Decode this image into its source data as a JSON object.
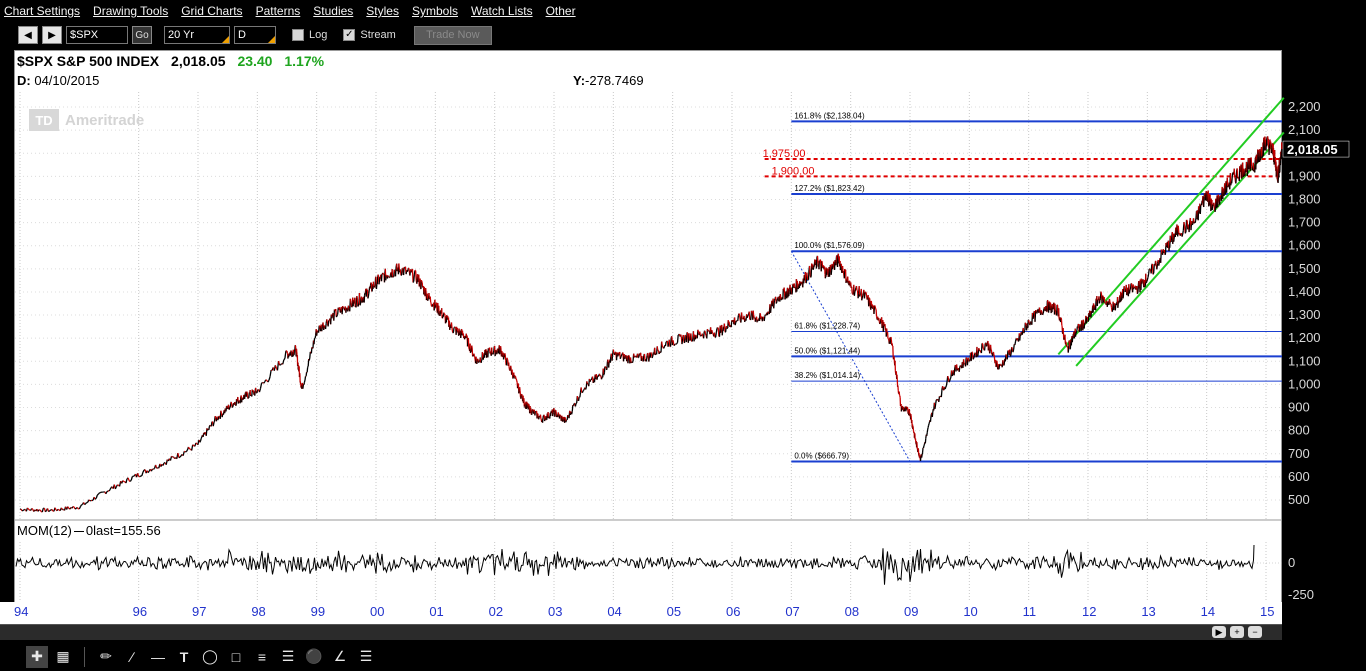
{
  "menu": [
    "Chart Settings",
    "Drawing Tools",
    "Grid Charts",
    "Patterns",
    "Studies",
    "Styles",
    "Symbols",
    "Watch Lists",
    "Other"
  ],
  "toolbar": {
    "symbol": "$SPX",
    "go_label": "Go",
    "period": "20 Yr",
    "interval": "D",
    "log_label": "Log",
    "log_checked": false,
    "stream_label": "Stream",
    "stream_checked": true,
    "trade_label": "Trade Now"
  },
  "header": {
    "symbol_name": "$SPX S&P 500 INDEX",
    "last": "2,018.05",
    "change": "23.40",
    "change_pct": "1.17%",
    "date_label": "D:",
    "date": "04/10/2015",
    "y_label": "Y:",
    "y_value": "-278.7469",
    "watermark_logo": "TD",
    "watermark_name": "Ameritrade"
  },
  "colors": {
    "up": "#1fa51f",
    "price_down": "#cc0000",
    "fib_line": "#1a3fd0",
    "support": "#e00000",
    "channel": "#22cc22",
    "x_labels": "#2233cc",
    "price_axis_text": "#d9d9d9",
    "last_price_bg": "#000000"
  },
  "mom": {
    "label": "MOM(12)",
    "last_text": "last=155.56",
    "ticks": [
      "0",
      "-250"
    ]
  },
  "last_price_tag": "2,018.05",
  "chart_data": {
    "type": "line",
    "title": "$SPX S&P 500 INDEX",
    "interval": "daily",
    "period": "20 Yr",
    "x_ticks": [
      "94",
      "96",
      "97",
      "98",
      "99",
      "00",
      "01",
      "02",
      "03",
      "04",
      "05",
      "06",
      "07",
      "08",
      "09",
      "10",
      "11",
      "12",
      "13",
      "14",
      "15"
    ],
    "x_tick_years": [
      1994.0,
      1996.0,
      1997.0,
      1998.0,
      1999.0,
      2000.0,
      2001.0,
      2002.0,
      2003.0,
      2004.0,
      2005.0,
      2006.0,
      2007.0,
      2008.0,
      2009.0,
      2010.0,
      2011.0,
      2012.0,
      2013.0,
      2014.0,
      2015.0
    ],
    "y_ticks": [
      500,
      600,
      700,
      800,
      900,
      1000,
      1100,
      1200,
      1300,
      1400,
      1500,
      1600,
      1700,
      1800,
      1900,
      2000,
      2100,
      2200
    ],
    "ylim": [
      420,
      2300
    ],
    "series": [
      {
        "x": [
          1994.0,
          1994.5,
          1995.0,
          1995.5,
          1996.0,
          1996.5,
          1997.0,
          1997.3,
          1997.6,
          1997.8,
          1998.0,
          1998.5,
          1998.65,
          1998.75,
          1999.0,
          1999.3,
          1999.6,
          1999.8,
          2000.0,
          2000.2,
          2000.4,
          2000.7,
          2000.9,
          2001.1,
          2001.3,
          2001.5,
          2001.7,
          2001.9,
          2002.1,
          2002.3,
          2002.5,
          2002.6,
          2002.8,
          2003.0,
          2003.2,
          2003.5,
          2003.8,
          2004.0,
          2004.3,
          2004.6,
          2004.9,
          2005.2,
          2005.5,
          2005.8,
          2006.0,
          2006.3,
          2006.5,
          2006.8,
          2007.0,
          2007.2,
          2007.45,
          2007.6,
          2007.8,
          2008.0,
          2008.25,
          2008.5,
          2008.7,
          2008.85,
          2009.0,
          2009.1,
          2009.18,
          2009.4,
          2009.7,
          2010.0,
          2010.3,
          2010.5,
          2010.8,
          2011.0,
          2011.3,
          2011.5,
          2011.65,
          2011.8,
          2012.0,
          2012.2,
          2012.45,
          2012.6,
          2012.85,
          2013.0,
          2013.3,
          2013.5,
          2013.8,
          2014.0,
          2014.1,
          2014.4,
          2014.6,
          2014.8,
          2014.9,
          2015.0,
          2015.12,
          2015.2,
          2015.27
        ],
        "y": [
          460,
          455,
          470,
          545,
          610,
          670,
          740,
          850,
          920,
          950,
          970,
          1130,
          1150,
          980,
          1230,
          1300,
          1350,
          1380,
          1440,
          1480,
          1500,
          1460,
          1370,
          1310,
          1240,
          1210,
          1100,
          1140,
          1150,
          1050,
          920,
          890,
          850,
          880,
          840,
          990,
          1040,
          1130,
          1110,
          1120,
          1180,
          1200,
          1220,
          1230,
          1270,
          1300,
          1280,
          1380,
          1410,
          1450,
          1530,
          1480,
          1540,
          1420,
          1380,
          1280,
          1170,
          900,
          880,
          750,
          677,
          900,
          1050,
          1110,
          1180,
          1070,
          1180,
          1270,
          1340,
          1320,
          1150,
          1230,
          1280,
          1380,
          1330,
          1400,
          1420,
          1460,
          1580,
          1660,
          1700,
          1830,
          1760,
          1880,
          1930,
          1950,
          2000,
          2050,
          2010,
          1900,
          2018
        ]
      }
    ],
    "annotations": {
      "fib_levels": [
        {
          "pct": "161.8%",
          "value": 2138.04,
          "label": "($2,138.04)"
        },
        {
          "pct": "127.2%",
          "value": 1823.42,
          "label": "($1,823.42)"
        },
        {
          "pct": "100.0%",
          "value": 1576.09,
          "label": "($1,576.09)"
        },
        {
          "pct": "61.8%",
          "value": 1228.74,
          "label": "($1,228.74)"
        },
        {
          "pct": "50.0%",
          "value": 1121.44,
          "label": "($1,121.44)"
        },
        {
          "pct": "38.2%",
          "value": 1014.14,
          "label": "($1,014.14)"
        },
        {
          "pct": "0.0%",
          "value": 666.79,
          "label": "($666.79)"
        }
      ],
      "fib_start_year": 2007.0,
      "support_levels": [
        {
          "label": "1,975.00",
          "value": 1975
        },
        {
          "label": "1,900.00",
          "value": 1900
        }
      ],
      "support_start_year": 2006.55,
      "fib_anchor": {
        "from_x": 2007.0,
        "from_y": 1576.09,
        "to_x": 2009.0,
        "to_y": 666.79
      },
      "channel": [
        {
          "x0": 2011.5,
          "y0": 1130,
          "x1": 2015.3,
          "y1": 2240
        },
        {
          "x0": 2011.8,
          "y0": 1080,
          "x1": 2015.3,
          "y1": 2090
        }
      ]
    }
  }
}
